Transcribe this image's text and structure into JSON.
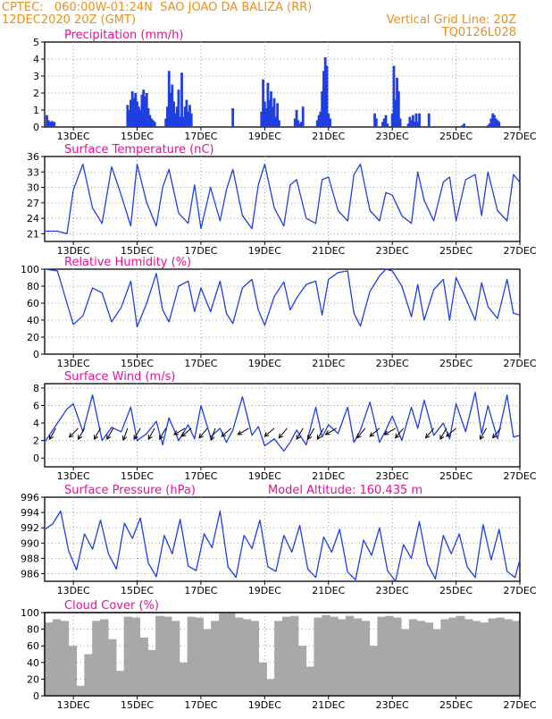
{
  "header": {
    "line1_left": "CPTEC:   060:00W-01:24N  SAO JOAO DA BALIZA (RR)",
    "line2_left": "12DEC2020 20Z (GMT)",
    "line2_right": "Vertical Grid Line: 20Z",
    "line3_right": "TQ0126L028"
  },
  "colors": {
    "header": "#e8901a",
    "title": "#e0139a",
    "series": "#1f3fe0",
    "cloud": "#a8a8a8",
    "grid": "#9a9a9a"
  },
  "x_axis": {
    "tick_labels": [
      "13DEC",
      "15DEC",
      "17DEC",
      "19DEC",
      "21DEC",
      "23DEC",
      "25DEC",
      "27DEC"
    ],
    "tick_days": [
      13,
      15,
      17,
      19,
      21,
      23,
      25,
      27
    ],
    "range_days": [
      12.1,
      27.0
    ],
    "note": "x values are days of December 2020 (fractional)"
  },
  "chart_data": [
    {
      "type": "bar",
      "title": "Precipitation (mm/h)",
      "ylim": [
        0,
        5
      ],
      "yticks": [
        0,
        1,
        2,
        3,
        4,
        5
      ],
      "x": [
        12.17,
        12.22,
        12.27,
        12.33,
        12.4,
        14.7,
        14.75,
        14.8,
        14.85,
        14.9,
        14.95,
        15.0,
        15.05,
        15.1,
        15.15,
        15.2,
        15.25,
        15.3,
        15.35,
        15.4,
        15.45,
        15.5,
        15.55,
        15.9,
        15.95,
        16.0,
        16.05,
        16.1,
        16.15,
        16.2,
        16.25,
        16.3,
        16.35,
        16.4,
        16.45,
        16.5,
        16.55,
        16.6,
        16.65,
        16.7,
        18.0,
        18.9,
        18.95,
        19.0,
        19.05,
        19.1,
        19.15,
        19.2,
        19.25,
        19.3,
        19.35,
        19.4,
        19.45,
        19.95,
        20.0,
        20.05,
        20.1,
        20.15,
        20.2,
        20.65,
        20.7,
        20.75,
        20.8,
        20.85,
        20.9,
        20.95,
        21.0,
        21.05,
        22.45,
        22.5,
        22.7,
        22.75,
        22.8,
        22.85,
        23.0,
        23.05,
        23.1,
        23.15,
        23.2,
        23.25,
        23.5,
        23.55,
        23.6,
        23.65,
        23.7,
        23.75,
        23.8,
        23.85,
        24.15,
        25.2,
        25.25,
        26.0,
        26.05,
        26.1,
        26.15,
        26.2,
        26.25,
        26.3,
        26.35
      ],
      "values": [
        0.7,
        0.4,
        0.3,
        0.35,
        0.3,
        1.3,
        1.0,
        1.6,
        2.1,
        1.7,
        2.0,
        1.5,
        1.2,
        1.0,
        1.9,
        2.2,
        1.8,
        2.0,
        1.1,
        0.7,
        0.5,
        0.4,
        0.3,
        0.5,
        1.2,
        3.3,
        2.0,
        2.5,
        1.5,
        0.8,
        1.2,
        2.2,
        0.6,
        3.2,
        0.6,
        1.2,
        1.6,
        0.9,
        1.3,
        0.8,
        1.1,
        0.9,
        2.8,
        1.5,
        1.1,
        2.6,
        1.6,
        2.1,
        1.2,
        1.7,
        0.6,
        1.4,
        0.4,
        0.5,
        1.0,
        0.4,
        0.2,
        0.3,
        1.2,
        0.4,
        0.7,
        0.9,
        2.1,
        3.3,
        4.1,
        3.6,
        0.8,
        0.5,
        0.8,
        0.5,
        0.3,
        0.5,
        0.7,
        0.2,
        0.8,
        3.6,
        1.6,
        2.9,
        2.1,
        0.5,
        0.2,
        0.6,
        0.4,
        0.7,
        0.3,
        0.8,
        0.3,
        0.8,
        0.8,
        0.1,
        0.2,
        0.1,
        0.2,
        0.5,
        0.8,
        0.7,
        0.5,
        0.4,
        0.3
      ]
    },
    {
      "type": "line",
      "title": "Surface Temperature (nC)",
      "ylim": [
        19.5,
        36
      ],
      "yticks": [
        21,
        24,
        27,
        30,
        33,
        36
      ],
      "x": [
        12.1,
        12.5,
        12.8,
        13.0,
        13.3,
        13.6,
        13.9,
        14.2,
        14.5,
        14.8,
        15.0,
        15.3,
        15.6,
        15.8,
        16.0,
        16.3,
        16.6,
        16.8,
        17.0,
        17.3,
        17.6,
        17.8,
        18.0,
        18.3,
        18.6,
        18.8,
        19.0,
        19.3,
        19.6,
        19.8,
        20.0,
        20.3,
        20.6,
        20.8,
        21.0,
        21.3,
        21.6,
        21.8,
        22.0,
        22.3,
        22.6,
        22.8,
        23.0,
        23.3,
        23.6,
        23.8,
        24.0,
        24.3,
        24.6,
        24.8,
        25.0,
        25.3,
        25.6,
        25.8,
        26.0,
        26.3,
        26.6,
        26.8,
        27.0
      ],
      "values": [
        21.5,
        21.5,
        21.0,
        29.5,
        34.5,
        26.0,
        23.0,
        34.0,
        28.5,
        22.5,
        34.5,
        27.0,
        22.5,
        30.0,
        33.5,
        25.0,
        23.0,
        30.5,
        22.0,
        30.0,
        23.5,
        29.5,
        33.5,
        24.5,
        22.0,
        30.5,
        34.5,
        26.0,
        22.5,
        30.5,
        31.5,
        24.0,
        23.0,
        31.5,
        32.0,
        25.5,
        23.5,
        32.5,
        34.5,
        25.5,
        23.5,
        29.0,
        28.5,
        24.5,
        23.0,
        33.0,
        27.5,
        23.5,
        31.0,
        32.0,
        23.5,
        31.5,
        32.5,
        24.5,
        33.0,
        25.5,
        23.5,
        32.5,
        31.0
      ]
    },
    {
      "type": "line",
      "title": "Relative Humidity (%)",
      "ylim": [
        0,
        100
      ],
      "yticks": [
        0,
        20,
        40,
        60,
        80,
        100
      ],
      "x": [
        12.1,
        12.5,
        12.8,
        13.0,
        13.3,
        13.6,
        13.9,
        14.2,
        14.5,
        14.8,
        15.0,
        15.3,
        15.6,
        15.8,
        16.0,
        16.3,
        16.6,
        16.8,
        17.0,
        17.3,
        17.6,
        17.8,
        18.0,
        18.3,
        18.6,
        18.8,
        19.0,
        19.3,
        19.6,
        19.8,
        20.0,
        20.3,
        20.6,
        20.8,
        21.0,
        21.3,
        21.6,
        21.8,
        22.0,
        22.3,
        22.6,
        22.8,
        23.0,
        23.3,
        23.6,
        23.8,
        24.0,
        24.3,
        24.6,
        24.8,
        25.0,
        25.3,
        25.6,
        25.8,
        26.0,
        26.3,
        26.6,
        26.8,
        27.0
      ],
      "values": [
        100,
        98,
        60,
        35,
        45,
        78,
        72,
        38,
        55,
        86,
        32,
        60,
        95,
        52,
        38,
        80,
        86,
        50,
        78,
        50,
        86,
        48,
        36,
        78,
        88,
        52,
        34,
        68,
        85,
        52,
        66,
        82,
        86,
        46,
        88,
        96,
        98,
        48,
        33,
        74,
        92,
        100,
        98,
        80,
        44,
        82,
        40,
        76,
        88,
        40,
        90,
        66,
        40,
        84,
        56,
        42,
        88,
        48,
        46
      ]
    },
    {
      "type": "line",
      "title": "Surface Wind (m/s)",
      "ylim": [
        -1,
        8.5
      ],
      "yticks": [
        0,
        2,
        4,
        6,
        8
      ],
      "x": [
        12.1,
        12.5,
        12.8,
        13.0,
        13.3,
        13.6,
        13.9,
        14.2,
        14.5,
        14.8,
        15.0,
        15.3,
        15.6,
        15.8,
        16.0,
        16.3,
        16.6,
        16.8,
        17.0,
        17.3,
        17.6,
        17.8,
        18.0,
        18.3,
        18.6,
        18.8,
        19.0,
        19.3,
        19.6,
        19.8,
        20.0,
        20.3,
        20.6,
        20.8,
        21.0,
        21.3,
        21.6,
        21.8,
        22.0,
        22.3,
        22.6,
        22.8,
        23.0,
        23.3,
        23.6,
        23.8,
        24.0,
        24.3,
        24.6,
        24.8,
        25.0,
        25.3,
        25.6,
        25.8,
        26.0,
        26.3,
        26.6,
        26.8,
        27.0
      ],
      "values": [
        1.8,
        4.0,
        5.6,
        6.2,
        3.0,
        7.2,
        2.0,
        3.5,
        3.0,
        5.8,
        2.0,
        2.8,
        4.2,
        1.5,
        4.6,
        2.0,
        3.8,
        2.2,
        6.0,
        2.4,
        3.4,
        1.8,
        3.2,
        7.0,
        2.6,
        3.6,
        1.4,
        2.2,
        0.8,
        1.8,
        3.2,
        1.5,
        5.8,
        2.4,
        3.8,
        2.8,
        5.8,
        1.8,
        3.2,
        6.4,
        1.8,
        3.2,
        4.8,
        2.0,
        5.8,
        3.4,
        6.6,
        2.6,
        4.0,
        2.2,
        6.2,
        3.0,
        7.5,
        2.8,
        6.0,
        2.2,
        7.2,
        2.4,
        2.6
      ],
      "wind_arrows": [
        {
          "x": 12.45,
          "dir": 210
        },
        {
          "x": 13.15,
          "dir": 225
        },
        {
          "x": 13.35,
          "dir": 210
        },
        {
          "x": 13.85,
          "dir": 210
        },
        {
          "x": 14.25,
          "dir": 210
        },
        {
          "x": 14.7,
          "dir": 200
        },
        {
          "x": 15.1,
          "dir": 210
        },
        {
          "x": 15.55,
          "dir": 210
        },
        {
          "x": 15.9,
          "dir": 210
        },
        {
          "x": 16.5,
          "dir": 240
        },
        {
          "x": 16.7,
          "dir": 230
        },
        {
          "x": 17.2,
          "dir": 220
        },
        {
          "x": 17.45,
          "dir": 200
        },
        {
          "x": 17.95,
          "dir": 230
        },
        {
          "x": 18.5,
          "dir": 240
        },
        {
          "x": 19.3,
          "dir": 230
        },
        {
          "x": 19.7,
          "dir": 220
        },
        {
          "x": 20.2,
          "dir": 210
        },
        {
          "x": 20.55,
          "dir": 210
        },
        {
          "x": 20.85,
          "dir": 210
        },
        {
          "x": 21.25,
          "dir": 240
        },
        {
          "x": 22.15,
          "dir": 220
        },
        {
          "x": 22.6,
          "dir": 230
        },
        {
          "x": 23.1,
          "dir": 240
        },
        {
          "x": 23.35,
          "dir": 220
        },
        {
          "x": 24.3,
          "dir": 220
        },
        {
          "x": 24.7,
          "dir": 210
        },
        {
          "x": 25.0,
          "dir": 230
        },
        {
          "x": 25.95,
          "dir": 210
        },
        {
          "x": 26.4,
          "dir": 220
        }
      ]
    },
    {
      "type": "line",
      "title": "Surface Pressure (hPa)",
      "annotation": "Model Altitude: 160.435 m",
      "ylim": [
        985,
        996
      ],
      "yticks": [
        986,
        988,
        990,
        992,
        994,
        996
      ],
      "x": [
        12.1,
        12.35,
        12.6,
        12.85,
        13.1,
        13.35,
        13.6,
        13.85,
        14.1,
        14.35,
        14.6,
        14.85,
        15.1,
        15.35,
        15.6,
        15.85,
        16.1,
        16.35,
        16.6,
        16.85,
        17.1,
        17.35,
        17.6,
        17.85,
        18.1,
        18.35,
        18.6,
        18.85,
        19.1,
        19.35,
        19.6,
        19.85,
        20.1,
        20.35,
        20.6,
        20.85,
        21.1,
        21.35,
        21.6,
        21.85,
        22.1,
        22.35,
        22.6,
        22.85,
        23.1,
        23.35,
        23.6,
        23.85,
        24.1,
        24.35,
        24.6,
        24.85,
        25.1,
        25.35,
        25.6,
        25.85,
        26.1,
        26.35,
        26.6,
        26.85,
        27.0
      ],
      "values": [
        991.8,
        992.5,
        994.2,
        989.0,
        986.5,
        991.2,
        989.2,
        993.0,
        988.6,
        986.6,
        992.6,
        990.6,
        993.3,
        987.4,
        985.6,
        991.0,
        988.6,
        993.1,
        987.0,
        986.4,
        991.2,
        989.4,
        994.2,
        986.9,
        985.5,
        991.0,
        989.3,
        993.0,
        986.9,
        986.3,
        991.0,
        988.8,
        992.3,
        986.6,
        985.5,
        990.8,
        988.8,
        991.8,
        986.2,
        985.2,
        990.4,
        988.4,
        992.0,
        986.4,
        984.8,
        989.8,
        988.0,
        992.8,
        987.3,
        985.3,
        991.0,
        988.6,
        991.2,
        986.9,
        985.5,
        992.4,
        987.8,
        991.8,
        986.3,
        985.5,
        987.8
      ]
    },
    {
      "type": "bar",
      "title": "Cloud Cover (%)",
      "ylim": [
        0,
        100
      ],
      "yticks": [
        0,
        20,
        40,
        60,
        80,
        100
      ],
      "x": [
        12.1,
        12.35,
        12.6,
        12.85,
        13.1,
        13.35,
        13.6,
        13.85,
        14.1,
        14.35,
        14.6,
        14.85,
        15.1,
        15.35,
        15.6,
        15.85,
        16.1,
        16.35,
        16.6,
        16.85,
        17.1,
        17.35,
        17.6,
        17.85,
        18.1,
        18.35,
        18.6,
        18.85,
        19.1,
        19.35,
        19.6,
        19.85,
        20.1,
        20.35,
        20.6,
        20.85,
        21.1,
        21.35,
        21.6,
        21.85,
        22.1,
        22.35,
        22.6,
        22.85,
        23.1,
        23.35,
        23.6,
        23.85,
        24.1,
        24.35,
        24.6,
        24.85,
        25.1,
        25.35,
        25.6,
        25.85,
        26.1,
        26.35,
        26.6,
        26.85
      ],
      "values": [
        88,
        92,
        90,
        60,
        12,
        50,
        90,
        92,
        68,
        30,
        95,
        94,
        70,
        55,
        96,
        95,
        90,
        40,
        95,
        94,
        80,
        90,
        99,
        100,
        94,
        92,
        90,
        40,
        20,
        90,
        95,
        96,
        60,
        35,
        94,
        97,
        95,
        92,
        96,
        93,
        90,
        60,
        95,
        96,
        94,
        80,
        92,
        90,
        88,
        80,
        92,
        94,
        96,
        92,
        90,
        88,
        93,
        94,
        92,
        90
      ]
    }
  ]
}
